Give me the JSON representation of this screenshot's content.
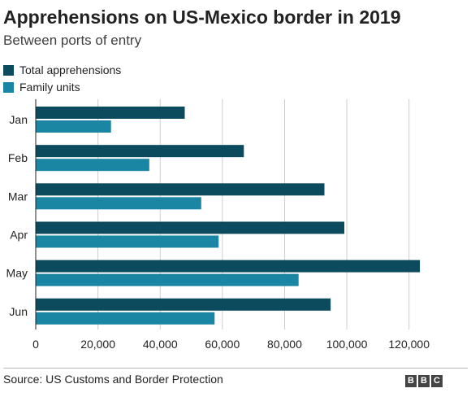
{
  "header": {
    "title": "Apprehensions on US-Mexico border in 2019",
    "subtitle": "Between ports of entry"
  },
  "footer": {
    "source": "Source: US Customs and Border Protection",
    "logo_text": [
      "B",
      "B",
      "C"
    ]
  },
  "chart_data": {
    "type": "bar",
    "orientation": "horizontal",
    "title": "Apprehensions on US-Mexico border in 2019",
    "subtitle": "Between ports of entry",
    "categories": [
      "Jan",
      "Feb",
      "Mar",
      "Apr",
      "May",
      "Jun"
    ],
    "series": [
      {
        "name": "Total apprehensions",
        "color": "#0c4a5e",
        "values": [
          47900,
          66900,
          92800,
          99200,
          123500,
          94800
        ]
      },
      {
        "name": "Family units",
        "color": "#1a86a3",
        "values": [
          24200,
          36500,
          53200,
          58800,
          84500,
          57500
        ]
      }
    ],
    "xlim": [
      0,
      130000
    ],
    "xticks": [
      0,
      20000,
      40000,
      60000,
      80000,
      100000,
      120000
    ],
    "xtick_labels": [
      "0",
      "20,000",
      "40,000",
      "60,000",
      "80,000",
      "100,000",
      "120,000"
    ],
    "grid": true,
    "legend": "top-left"
  }
}
